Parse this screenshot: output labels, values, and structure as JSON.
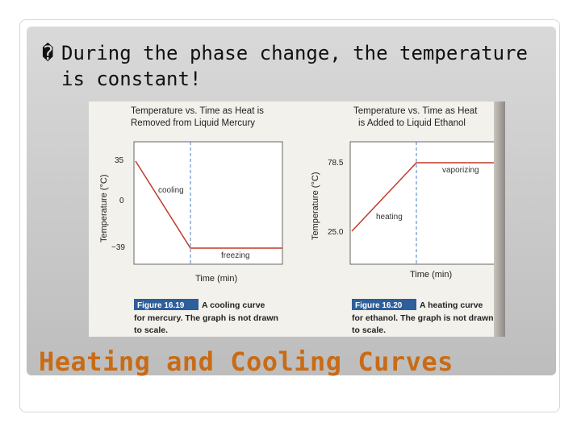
{
  "slide": {
    "bullet_mark": "�",
    "bullet_line1": "During the phase change, the temperature",
    "bullet_line2": "is constant!",
    "title": "Heating and Cooling Curves",
    "title_color": "#c96b16"
  },
  "figure": {
    "left_chart": {
      "title_line1": "Temperature vs. Time as Heat is",
      "title_line2": "Removed from Liquid Mercury",
      "ylabel": "Temperature (°C)",
      "xlabel": "Time (min)",
      "tick_35": "35",
      "tick_0": "0",
      "tick_neg39": "−39",
      "label_cooling": "cooling",
      "label_freezing": "freezing",
      "caption_tag": "Figure 16.19",
      "caption_line1": "A cooling curve",
      "caption_line2": "for mercury. The graph is not drawn",
      "caption_line3": "to scale."
    },
    "right_chart": {
      "title_line1": "Temperature vs. Time as Heat",
      "title_line2": "is Added to Liquid Ethanol",
      "ylabel": "Temperature (°C)",
      "xlabel": "Time (min)",
      "tick_785": "78.5",
      "tick_250": "25.0",
      "label_heating": "heating",
      "label_vaporizing": "vaporizing",
      "caption_tag": "Figure 16.20",
      "caption_line1": "A heating curve",
      "caption_line2": "for ethanol. The graph is not drawn",
      "caption_line3": "to scale."
    },
    "line_color": "#c0392b",
    "divider_color": "#4a7fc0"
  }
}
